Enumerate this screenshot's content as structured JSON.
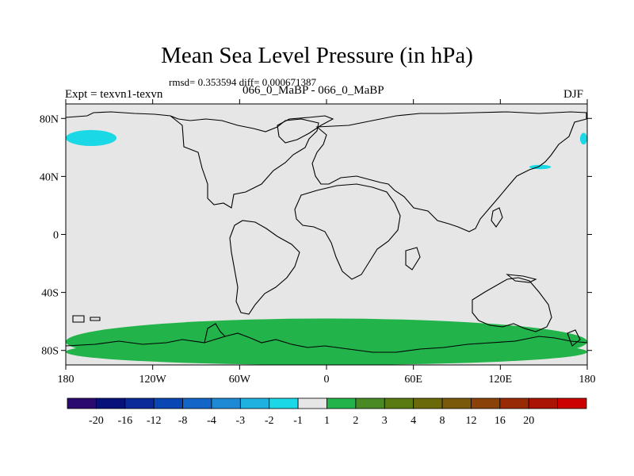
{
  "chart_data": {
    "type": "heatmap",
    "title": "Mean Sea Level Pressure (in hPa)",
    "stats_text": "rmsd= 0.353594 diff= 0.000671387",
    "left_label": "Expt = texvn1-texvn",
    "center_label": "066_0_MaBP - 066_0_MaBP",
    "right_label": "DJF",
    "x_range": [
      -180,
      180
    ],
    "y_range": [
      -90,
      90
    ],
    "x_ticks": [
      {
        "value": -180,
        "label": "180"
      },
      {
        "value": -120,
        "label": "120W"
      },
      {
        "value": -60,
        "label": "60W"
      },
      {
        "value": 0,
        "label": "0"
      },
      {
        "value": 60,
        "label": "60E"
      },
      {
        "value": 120,
        "label": "120E"
      },
      {
        "value": 180,
        "label": "180"
      }
    ],
    "y_ticks": [
      {
        "value": 80,
        "label": "80N"
      },
      {
        "value": 40,
        "label": "40N"
      },
      {
        "value": 0,
        "label": "0"
      },
      {
        "value": -40,
        "label": "40S"
      },
      {
        "value": -80,
        "label": "80S"
      }
    ],
    "colorbar": {
      "colors": [
        "#2a0a6e",
        "#08107a",
        "#0a2a99",
        "#0a46b4",
        "#1465c8",
        "#1e8ad6",
        "#1fb2e0",
        "#1ad8e6",
        "#e6e6e6",
        "#22b34a",
        "#4a8a24",
        "#5a7a12",
        "#6a6a0a",
        "#7a5a0a",
        "#8a4208",
        "#992a06",
        "#aa1404",
        "#cc0000"
      ],
      "labels": [
        "-20",
        "-16",
        "-12",
        "-8",
        "-4",
        "-3",
        "-2",
        "-1",
        "1",
        "2",
        "3",
        "4",
        "8",
        "12",
        "16",
        "20"
      ]
    },
    "field_colors": {
      "background": "#e6e6e6",
      "positive": "#22b34a",
      "negative": "#1ad8e6"
    },
    "regions": [
      {
        "name": "arctic-cyan-west",
        "level": "-2 to -1",
        "lon_min": -180,
        "lon_max": -145,
        "lat_min": 61,
        "lat_max": 72
      },
      {
        "name": "siberia-cyan",
        "level": "-2 to -1",
        "lon_min": 140,
        "lon_max": 155,
        "lat_min": 45,
        "lat_max": 48
      },
      {
        "name": "arctic-cyan-east",
        "level": "-2 to -1",
        "lon_min": 175,
        "lon_max": 180,
        "lat_min": 62,
        "lat_max": 70
      },
      {
        "name": "southern-ocean-green",
        "level": "1 to 2",
        "lon_min": -180,
        "lon_max": 180,
        "lat_min": -90,
        "lat_max": -58
      },
      {
        "name": "antarctic-coast-green",
        "level": "1 to 2",
        "lon_min": -180,
        "lon_max": 180,
        "lat_min": -90,
        "lat_max": -72
      }
    ]
  }
}
